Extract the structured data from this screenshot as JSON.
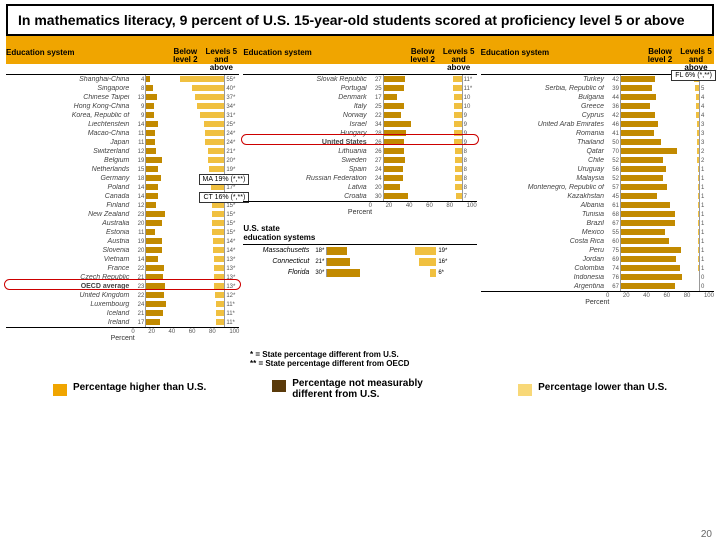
{
  "title": "In mathematics literacy, 9 percent of U.S. 15-year-old students scored at proficiency level 5 or above",
  "col_headers": {
    "sys": "Education system",
    "b2": "Below\nlevel 2",
    "l5": "Levels 5\nand above"
  },
  "axis": {
    "ticks": [
      "0",
      "20",
      "40",
      "60",
      "80",
      "100"
    ],
    "label": "Percent"
  },
  "col1": [
    {
      "n": "Shanghai-China",
      "b2": 4,
      "l5": 55
    },
    {
      "n": "Singapore",
      "b2": 8,
      "l5": 40
    },
    {
      "n": "Chinese Taipei",
      "b2": 13,
      "l5": 37
    },
    {
      "n": "Hong Kong-China",
      "b2": 9,
      "l5": 34
    },
    {
      "n": "Korea, Republic of",
      "b2": 9,
      "l5": 31
    },
    {
      "n": "Liechtenstein",
      "b2": 14,
      "l5": 25
    },
    {
      "n": "Macao-China",
      "b2": 11,
      "l5": 24
    },
    {
      "n": "Japan",
      "b2": 11,
      "l5": 24
    },
    {
      "n": "Switzerland",
      "b2": 12,
      "l5": 21
    },
    {
      "n": "Belgium",
      "b2": 19,
      "l5": 20
    },
    {
      "n": "Netherlands",
      "b2": 15,
      "l5": 19
    },
    {
      "n": "Germany",
      "b2": 18,
      "l5": 17
    },
    {
      "n": "Poland",
      "b2": 14,
      "l5": 17
    },
    {
      "n": "Canada",
      "b2": 14,
      "l5": 16
    },
    {
      "n": "Finland",
      "b2": 12,
      "l5": 15
    },
    {
      "n": "New Zealand",
      "b2": 23,
      "l5": 15
    },
    {
      "n": "Australia",
      "b2": 20,
      "l5": 15
    },
    {
      "n": "Estonia",
      "b2": 11,
      "l5": 15
    },
    {
      "n": "Austria",
      "b2": 19,
      "l5": 14
    },
    {
      "n": "Slovenia",
      "b2": 20,
      "l5": 14
    },
    {
      "n": "Vietnam",
      "b2": 14,
      "l5": 13
    },
    {
      "n": "France",
      "b2": 22,
      "l5": 13
    },
    {
      "n": "Czech Republic",
      "b2": 21,
      "l5": 13
    },
    {
      "n": "OECD average",
      "b2": 23,
      "l5": 13
    },
    {
      "n": "United Kingdom",
      "b2": 22,
      "l5": 12
    },
    {
      "n": "Luxembourg",
      "b2": 24,
      "l5": 11
    },
    {
      "n": "Iceland",
      "b2": 21,
      "l5": 11
    },
    {
      "n": "Ireland",
      "b2": 17,
      "l5": 11
    }
  ],
  "col2": [
    {
      "n": "Slovak Republic",
      "b2": 27,
      "l5": 11
    },
    {
      "n": "Portugal",
      "b2": 25,
      "l5": 11
    },
    {
      "n": "Denmark",
      "b2": 17,
      "l5": 10
    },
    {
      "n": "Italy",
      "b2": 25,
      "l5": 10
    },
    {
      "n": "Norway",
      "b2": 22,
      "l5": 9
    },
    {
      "n": "Israel",
      "b2": 34,
      "l5": 9
    },
    {
      "n": "Hungary",
      "b2": 28,
      "l5": 9
    },
    {
      "n": "United States",
      "b2": 26,
      "l5": 9
    },
    {
      "n": "Lithuania",
      "b2": 26,
      "l5": 8
    },
    {
      "n": "Sweden",
      "b2": 27,
      "l5": 8
    },
    {
      "n": "Spain",
      "b2": 24,
      "l5": 8
    },
    {
      "n": "Russian Federation",
      "b2": 24,
      "l5": 8
    },
    {
      "n": "Latvia",
      "b2": 20,
      "l5": 8
    },
    {
      "n": "Croatia",
      "b2": 30,
      "l5": 7
    }
  ],
  "col3": [
    {
      "n": "Turkey",
      "b2": 42,
      "l5": 6
    },
    {
      "n": "Serbia, Republic of",
      "b2": 39,
      "l5": 5
    },
    {
      "n": "Bulgaria",
      "b2": 44,
      "l5": 4
    },
    {
      "n": "Greece",
      "b2": 36,
      "l5": 4
    },
    {
      "n": "Cyprus",
      "b2": 42,
      "l5": 4
    },
    {
      "n": "United Arab Emirates",
      "b2": 46,
      "l5": 3
    },
    {
      "n": "Romania",
      "b2": 41,
      "l5": 3
    },
    {
      "n": "Thailand",
      "b2": 50,
      "l5": 3
    },
    {
      "n": "Qatar",
      "b2": 70,
      "l5": 2
    },
    {
      "n": "Chile",
      "b2": 52,
      "l5": 2
    },
    {
      "n": "Uruguay",
      "b2": 56,
      "l5": 1
    },
    {
      "n": "Malaysia",
      "b2": 52,
      "l5": 1
    },
    {
      "n": "Montenegro, Republic of",
      "b2": 57,
      "l5": 1
    },
    {
      "n": "Kazakhstan",
      "b2": 45,
      "l5": 1
    },
    {
      "n": "Albania",
      "b2": 61,
      "l5": 1
    },
    {
      "n": "Tunisia",
      "b2": 68,
      "l5": 1
    },
    {
      "n": "Brazil",
      "b2": 67,
      "l5": 1
    },
    {
      "n": "Mexico",
      "b2": 55,
      "l5": 1
    },
    {
      "n": "Costa Rica",
      "b2": 60,
      "l5": 1
    },
    {
      "n": "Peru",
      "b2": 75,
      "l5": 1
    },
    {
      "n": "Jordan",
      "b2": 69,
      "l5": 1
    },
    {
      "n": "Colombia",
      "b2": 74,
      "l5": 1
    },
    {
      "n": "Indonesia",
      "b2": 76,
      "l5": 0
    },
    {
      "n": "Argentina",
      "b2": 67,
      "l5": 0
    }
  ],
  "us_states": {
    "header": "U.S. state\neducation systems",
    "rows": [
      {
        "n": "Massachusetts",
        "b2": 18,
        "l5": 19
      },
      {
        "n": "Connecticut",
        "b2": 21,
        "l5": 16
      },
      {
        "n": "Florida",
        "b2": 30,
        "l5": 6
      }
    ]
  },
  "callouts": {
    "ma": "MA 19% (*,**)",
    "ct": "CT 16% (*,**)",
    "fl": "FL 6% (*,**)"
  },
  "footnotes": {
    "f1": "* = State percentage different from U.S.",
    "f2": "** = State percentage different from OECD"
  },
  "legend": {
    "higher": {
      "label": "Percentage higher than U.S.",
      "color": "#f0a500"
    },
    "same": {
      "label": "Percentage not measurably different from U.S.",
      "color": "#5a3a0a"
    },
    "lower": {
      "label": "Percentage lower than U.S.",
      "color": "#f8d878"
    }
  },
  "highlight_color": "#c00000",
  "page_number": "20"
}
